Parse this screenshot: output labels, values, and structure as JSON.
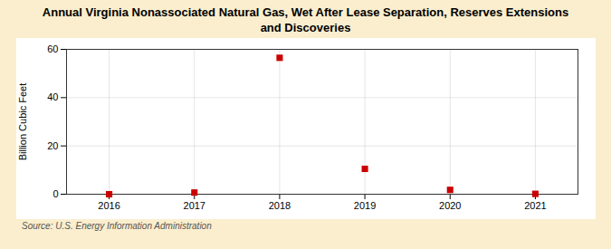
{
  "chart_data": {
    "type": "scatter",
    "title": "Annual Virginia Nonassociated Natural Gas, Wet After Lease Separation, Reserves Extensions\nand Discoveries",
    "ylabel": "Billion Cubic Feet",
    "source": "Source: U.S. Energy Information Administration",
    "x": [
      2016,
      2017,
      2018,
      2019,
      2020,
      2021
    ],
    "values": [
      0.0,
      0.7,
      56.5,
      10.5,
      1.8,
      0.15
    ],
    "xlim": [
      2015.5,
      2021.5
    ],
    "xticks": [
      2016,
      2017,
      2018,
      2019,
      2020,
      2021
    ],
    "ylim": [
      0,
      60
    ],
    "yticks": [
      0,
      20,
      40,
      60
    ],
    "color": "#cc0000",
    "marker": "square",
    "grid": true
  }
}
